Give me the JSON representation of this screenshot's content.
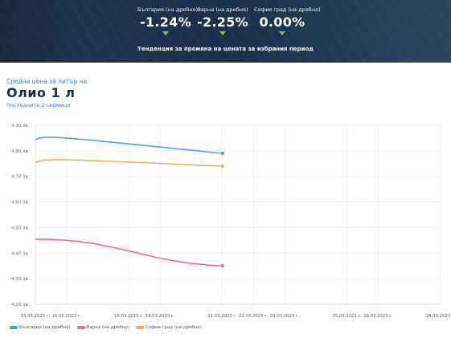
{
  "header": {
    "stats": [
      {
        "label": "България (на дребно)",
        "value": "-1.24%"
      },
      {
        "label": "Варна (на дребно)",
        "value": "-2.25%"
      },
      {
        "label": "София град (на дребно)",
        "value": "0.00%"
      }
    ],
    "caption": "Тенденция за промяна на цената за избрания период"
  },
  "main": {
    "subtitle": "Средна цена за литър на",
    "title": "Олио 1 л",
    "period": "Последните 2 седмици"
  },
  "colors": {
    "accent": "#8cc63f",
    "blue_series": "#4aa3df",
    "red_series": "#f06b86",
    "orange_series": "#f5a953"
  },
  "chart_data": {
    "type": "line",
    "x": [
      "15.03.2023 г.",
      "16.03.2023 г.",
      "18.03.2023 г.",
      "19.03.2023 г.",
      "21.03.2023 г.",
      "22.03.2023 г.",
      "23.03.2023 г.",
      "25.03.2023 г.",
      "26.03.2023 г.",
      "28.03.2023 г."
    ],
    "x_range": [
      "15.03.2023",
      "28.03.2023"
    ],
    "series": [
      {
        "name": "България (на дребно)",
        "color": "#4aa3df",
        "points": [
          [
            "15.03.2023",
            4.845
          ],
          [
            "16.03.2023",
            4.85
          ],
          [
            "21.03.2023",
            4.79
          ]
        ]
      },
      {
        "name": "Варна (на дребно)",
        "color": "#f06b86",
        "points": [
          [
            "15.03.2023",
            4.455
          ],
          [
            "21.03.2023",
            4.35
          ]
        ]
      },
      {
        "name": "София град (на дребно)",
        "color": "#f5a953",
        "points": [
          [
            "15.03.2023",
            4.755
          ],
          [
            "16.03.2023",
            4.765
          ],
          [
            "21.03.2023",
            4.74
          ]
        ]
      }
    ],
    "y_ticks": [
      "4.90 лв.",
      "4.80 лв.",
      "4.70 лв.",
      "4.60 лв.",
      "4.50 лв.",
      "4.40 лв.",
      "4.30 лв.",
      "4.20 лв."
    ],
    "ylim": [
      4.2,
      4.9
    ],
    "grid": true,
    "legend_position": "bottom-left"
  }
}
